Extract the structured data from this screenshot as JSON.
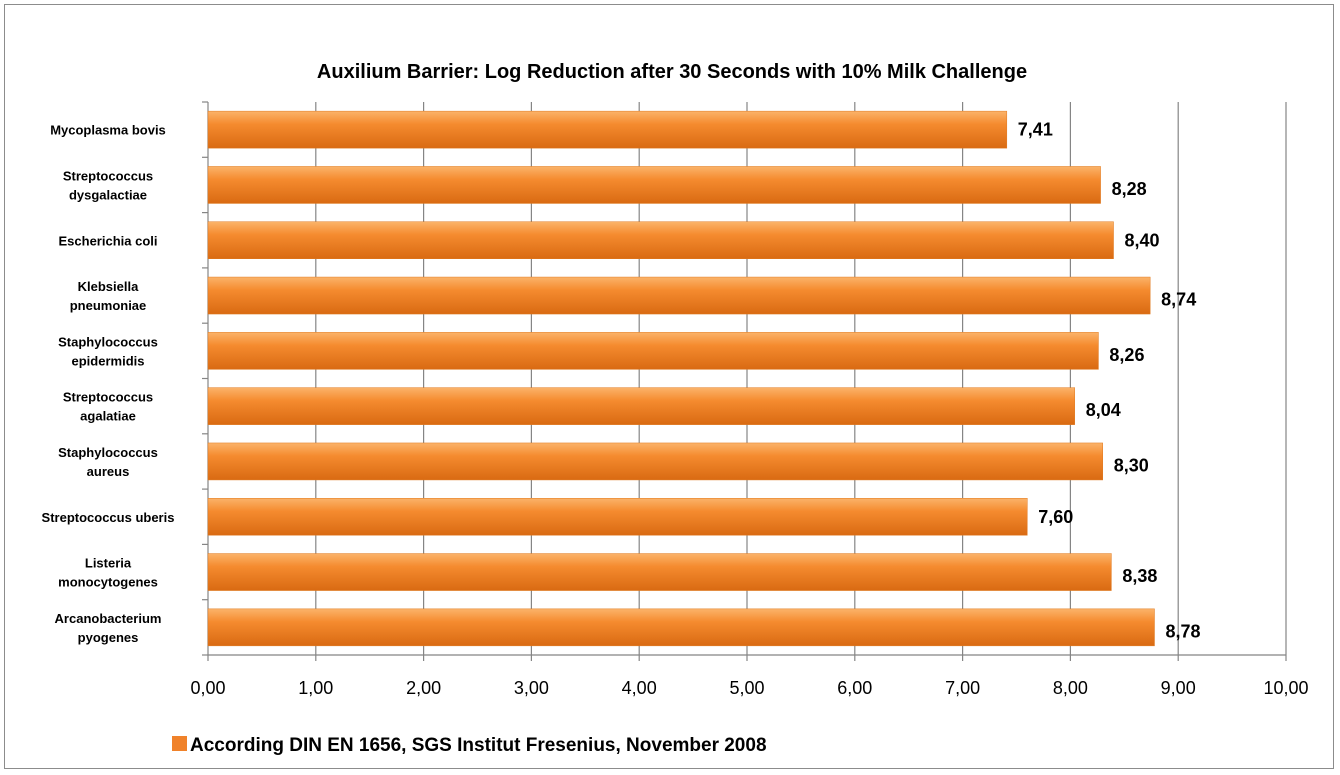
{
  "chart_data": {
    "type": "bar",
    "orientation": "horizontal",
    "title": "Auxilium Barrier:  Log Reduction after 30 Seconds with 10% Milk Challenge",
    "categories": [
      [
        "Mycoplasma bovis"
      ],
      [
        "Streptococcus",
        "dysgalactiae"
      ],
      [
        "Escherichia coli"
      ],
      [
        "Klebsiella",
        "pneumoniae"
      ],
      [
        "Staphylococcus",
        "epidermidis"
      ],
      [
        "Streptococcus",
        "agalatiae"
      ],
      [
        "Staphylococcus",
        "aureus"
      ],
      [
        "Streptococcus uberis"
      ],
      [
        "Listeria",
        "monocytogenes"
      ],
      [
        "Arcanobacterium",
        "pyogenes"
      ]
    ],
    "series": [
      {
        "name": "According DIN EN 1656, SGS Institut Fresenius, November 2008",
        "values": [
          7.41,
          8.28,
          8.4,
          8.74,
          8.26,
          8.04,
          8.3,
          7.6,
          8.38,
          8.78
        ],
        "data_labels": [
          "7,41",
          "8,28",
          "8,40",
          "8,74",
          "8,26",
          "8,04",
          "8,30",
          "7,60",
          "8,38",
          "8,78"
        ]
      }
    ],
    "xlim": [
      0,
      10
    ],
    "x_ticks": [
      "0,00",
      "1,00",
      "2,00",
      "3,00",
      "4,00",
      "5,00",
      "6,00",
      "7,00",
      "8,00",
      "9,00",
      "10,00"
    ],
    "grid": "vertical",
    "legend_position": "bottom-left",
    "colors": {
      "bar": "#f58b2f",
      "bar_light": "#fbb36a",
      "bar_dark": "#d96a12",
      "grid": "#858585",
      "legend_swatch": "#f0822a"
    }
  }
}
